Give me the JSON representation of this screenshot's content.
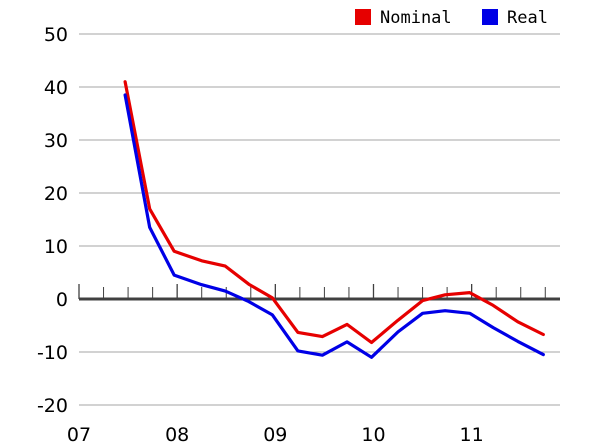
{
  "chart_data": {
    "type": "line",
    "title": "",
    "xlabel": "",
    "ylabel": "",
    "xlim": [
      2007.0,
      2011.9
    ],
    "ylim": [
      -20,
      50
    ],
    "yticks": [
      50,
      40,
      30,
      20,
      10,
      0,
      -10,
      -20
    ],
    "ytick_labels": [
      "50",
      "40",
      "30",
      "20",
      "10",
      "0",
      "-10",
      "-20"
    ],
    "xticks": [
      2007,
      2008,
      2009,
      2010,
      2011
    ],
    "xtick_labels": [
      "07",
      "08",
      "09",
      "10",
      "11"
    ],
    "minor_xticks": [
      2007.25,
      2007.5,
      2007.75,
      2008.25,
      2008.5,
      2008.75,
      2009.25,
      2009.5,
      2009.75,
      2010.25,
      2010.5,
      2010.75,
      2011.25,
      2011.5,
      2011.75
    ],
    "grid": "horizontal",
    "legend_position": "top-right",
    "series": [
      {
        "name": "Nominal",
        "color": "#e60000",
        "x": [
          2007.47,
          2007.72,
          2007.97,
          2008.25,
          2008.49,
          2008.73,
          2008.97,
          2009.23,
          2009.48,
          2009.73,
          2009.98,
          2010.25,
          2010.5,
          2010.73,
          2010.98,
          2011.22,
          2011.47,
          2011.73
        ],
        "y": [
          41,
          17,
          9,
          7.2,
          6.2,
          2.8,
          0.2,
          -6.3,
          -7.1,
          -4.8,
          -8.2,
          -4.0,
          -0.3,
          0.8,
          1.2,
          -1.2,
          -4.3,
          -6.7
        ]
      },
      {
        "name": "Real",
        "color": "#0000e6",
        "x": [
          2007.47,
          2007.72,
          2007.97,
          2008.25,
          2008.49,
          2008.73,
          2008.97,
          2009.23,
          2009.48,
          2009.73,
          2009.98,
          2010.25,
          2010.5,
          2010.73,
          2010.98,
          2011.22,
          2011.47,
          2011.73
        ],
        "y": [
          38.5,
          13.5,
          4.5,
          2.7,
          1.5,
          -0.5,
          -3.0,
          -9.8,
          -10.6,
          -8.1,
          -11.0,
          -6.2,
          -2.7,
          -2.2,
          -2.7,
          -5.4,
          -8.0,
          -10.5
        ]
      }
    ]
  }
}
